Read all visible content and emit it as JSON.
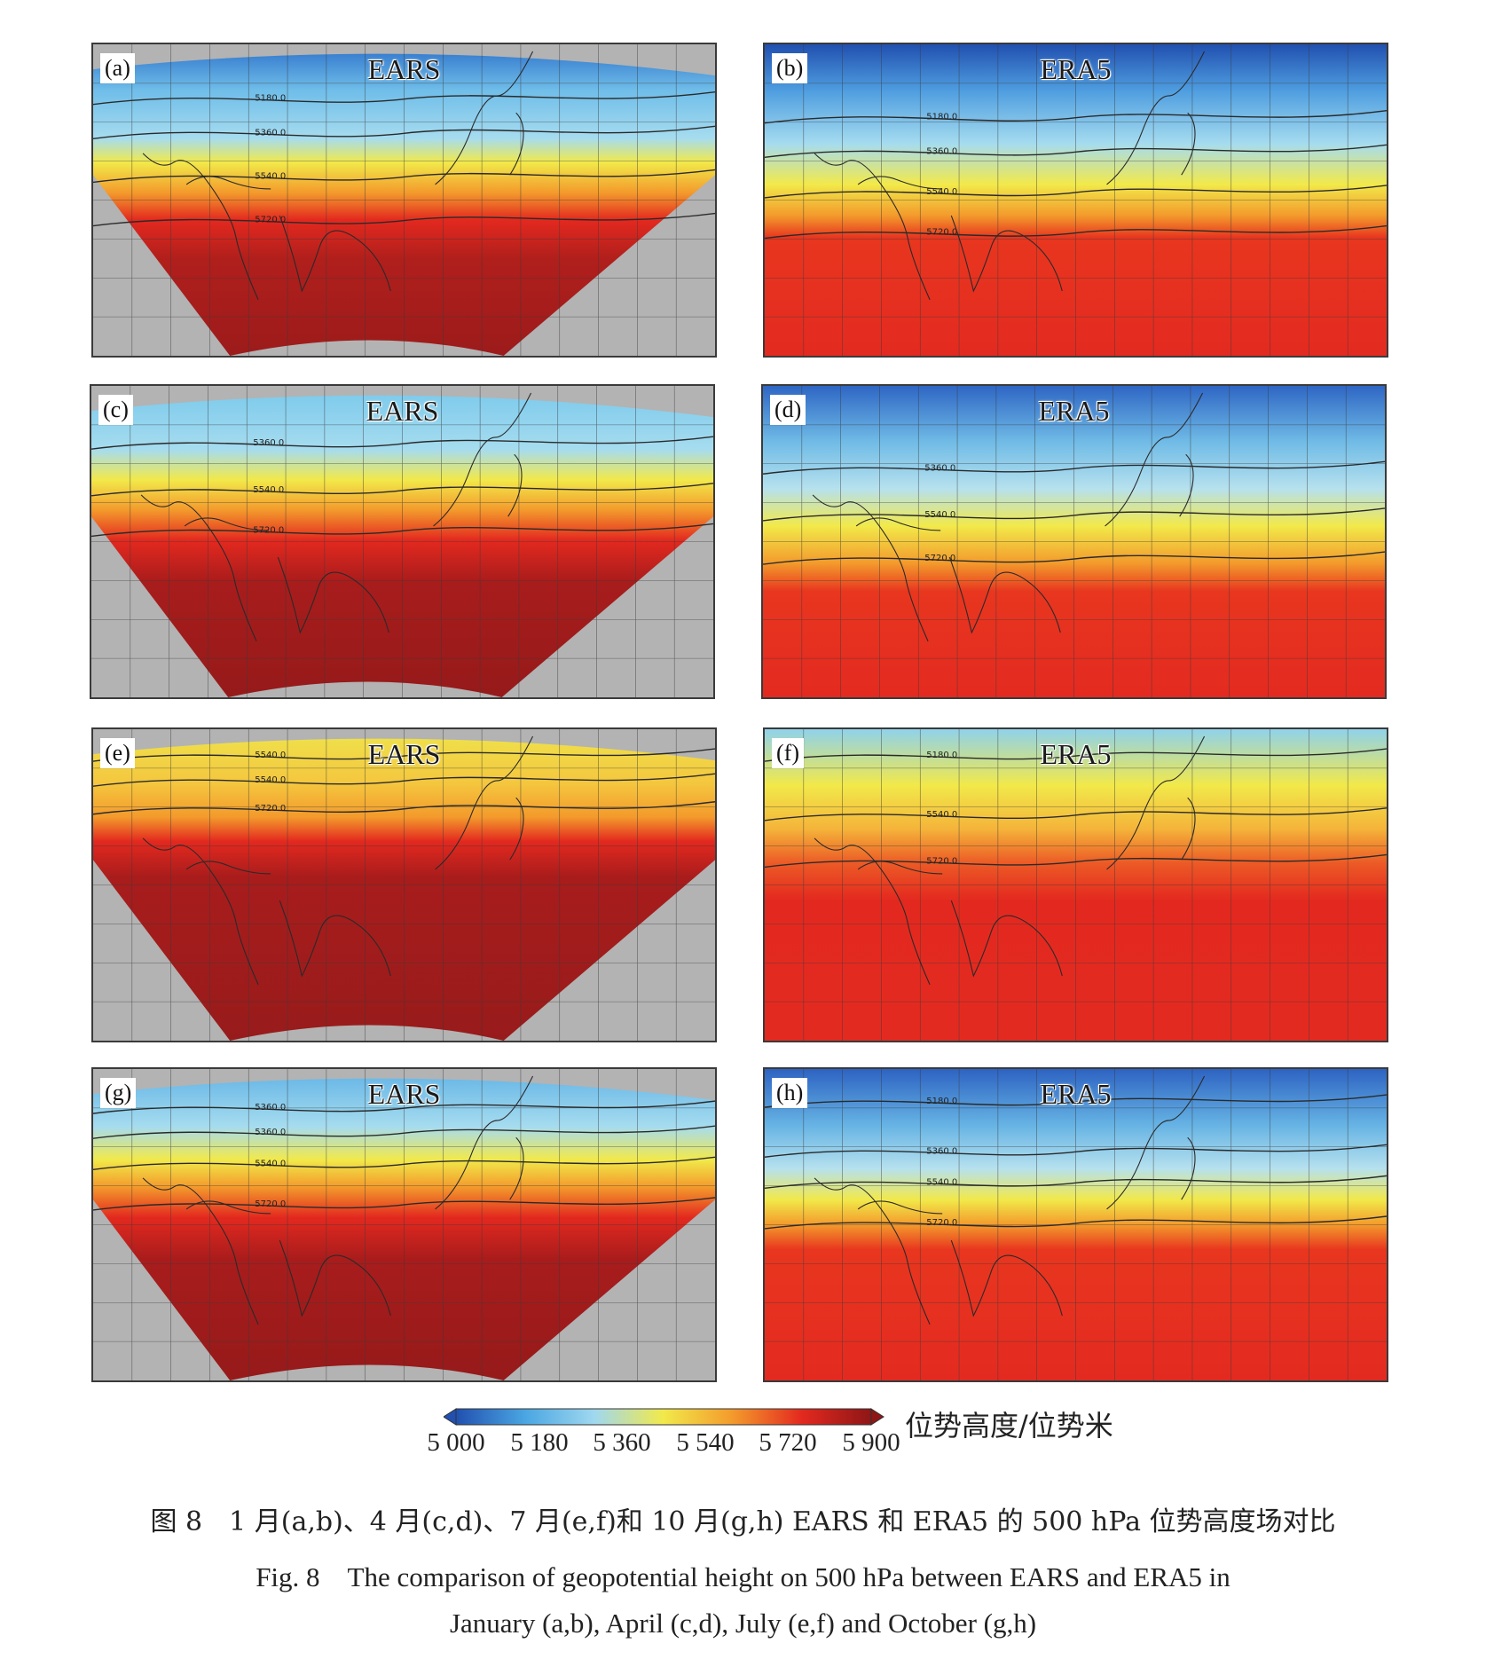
{
  "panels": [
    {
      "label": "(a)",
      "title": "EARS",
      "dataset": "EARS",
      "month": "January"
    },
    {
      "label": "(b)",
      "title": "ERA5",
      "dataset": "ERA5",
      "month": "January"
    },
    {
      "label": "(c)",
      "title": "EARS",
      "dataset": "EARS",
      "month": "April"
    },
    {
      "label": "(d)",
      "title": "ERA5",
      "dataset": "ERA5",
      "month": "April"
    },
    {
      "label": "(e)",
      "title": "EARS",
      "dataset": "EARS",
      "month": "July"
    },
    {
      "label": "(f)",
      "title": "ERA5",
      "dataset": "ERA5",
      "month": "July"
    },
    {
      "label": "(g)",
      "title": "EARS",
      "dataset": "EARS",
      "month": "October"
    },
    {
      "label": "(h)",
      "title": "ERA5",
      "dataset": "ERA5",
      "month": "October"
    }
  ],
  "contours": {
    "a": [
      "5180.0",
      "5360.0",
      "5540.0",
      "5720.0"
    ],
    "b": [
      "5180.0",
      "5360.0",
      "5540.0",
      "5720.0"
    ],
    "c": [
      "5360.0",
      "5540.0",
      "5720.0"
    ],
    "d": [
      "5360.0",
      "5540.0",
      "5720.0"
    ],
    "e": [
      "5540.0",
      "5540.0",
      "5720.0"
    ],
    "f": [
      "5180.0",
      "5540.0",
      "5720.0"
    ],
    "g": [
      "5360.0",
      "5360.0",
      "5540.0",
      "5720.0"
    ],
    "h": [
      "5180.0",
      "5360.0",
      "5540.0",
      "5720.0"
    ]
  },
  "colorbar": {
    "ticks": [
      "5 000",
      "5 180",
      "5 360",
      "5 540",
      "5 720",
      "5 900"
    ],
    "tick_values": [
      5000,
      5180,
      5360,
      5540,
      5720,
      5900
    ],
    "range": [
      5000,
      5900
    ],
    "unit": "位势高度/位势米",
    "colors": [
      "#2150b0",
      "#4aa6e2",
      "#9fd8ef",
      "#f2e94a",
      "#f39a2c",
      "#e3291f",
      "#8e1616"
    ]
  },
  "caption": {
    "cn": "图 8　1 月(a,b)、4 月(c,d)、7 月(e,f)和 10 月(g,h) EARS 和 ERA5 的 500 hPa 位势高度场对比",
    "en1": "Fig. 8　The comparison of geopotential height on 500 hPa between EARS and ERA5 in",
    "en2": "January (a,b), April (c,d), July (e,f) and October (g,h)"
  },
  "chart_data": {
    "type": "heatmap",
    "variable": "500 hPa geopotential height",
    "unit": "位势高度/位势米",
    "colorbar_range": [
      5000,
      5900
    ],
    "colorbar_ticks": [
      5000,
      5180,
      5360,
      5540,
      5720,
      5900
    ],
    "panels": [
      "(a)",
      "(b)",
      "(c)",
      "(d)",
      "(e)",
      "(f)",
      "(g)",
      "(h)"
    ]
  }
}
